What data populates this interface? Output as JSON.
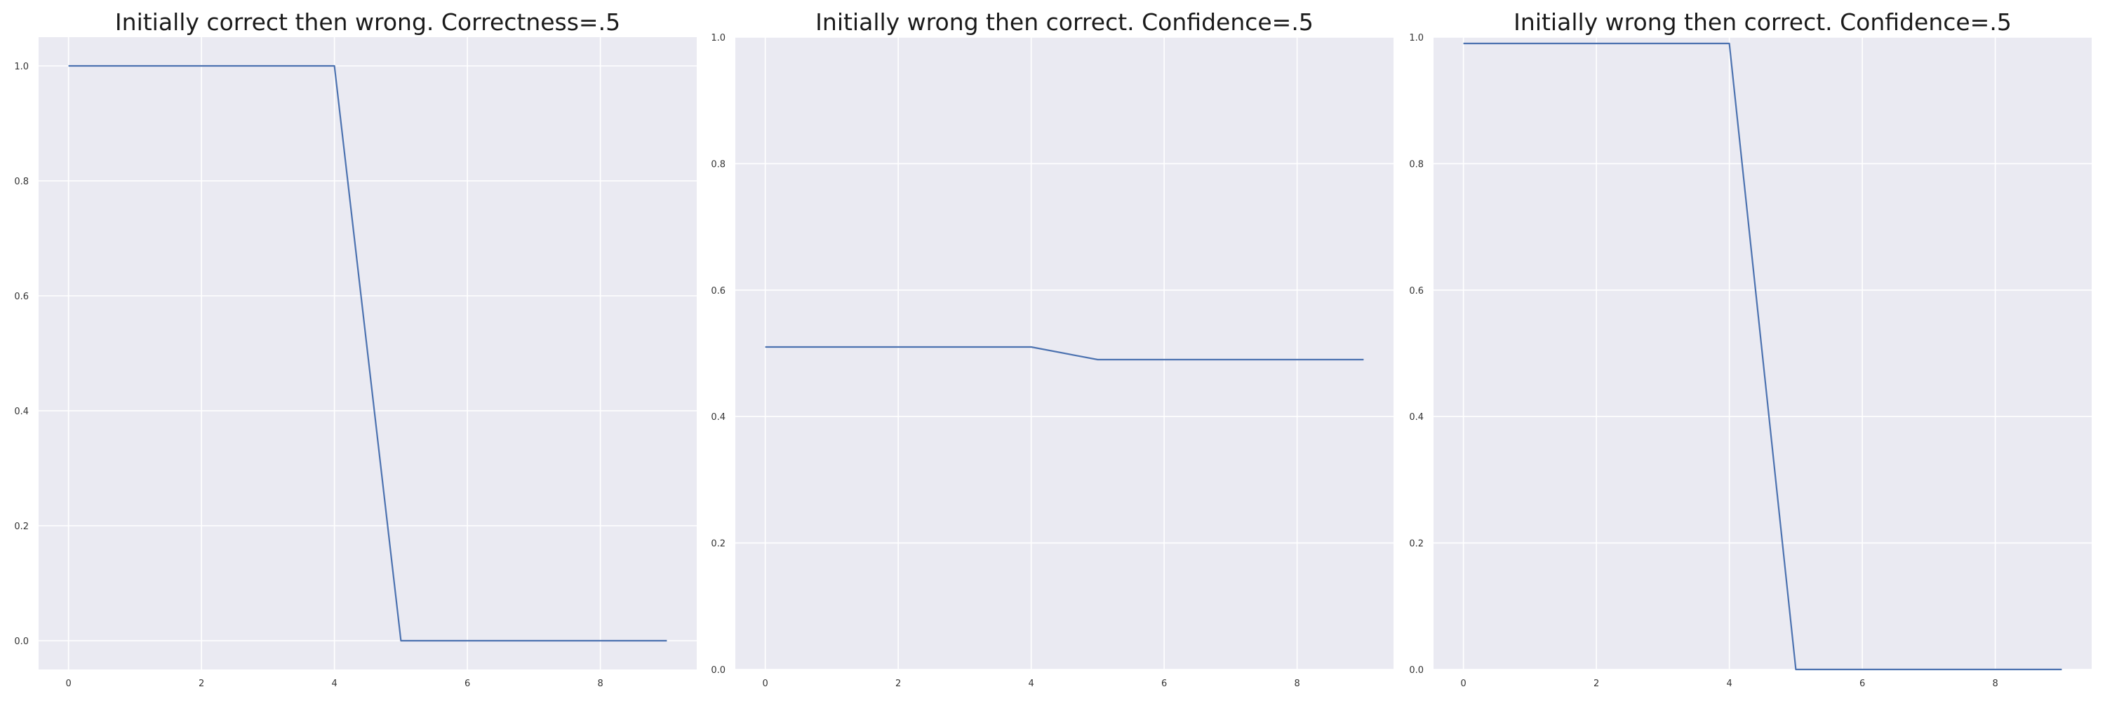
{
  "chart_data": [
    {
      "type": "line",
      "title": "Initially correct then wrong. Correctness=.5",
      "xlabel": "",
      "ylabel": "",
      "x": [
        0,
        1,
        2,
        3,
        4,
        5,
        6,
        7,
        8,
        9
      ],
      "series": [
        {
          "values": [
            1.0,
            1.0,
            1.0,
            1.0,
            1.0,
            0.0,
            0.0,
            0.0,
            0.0,
            0.0
          ]
        }
      ],
      "xlim": [
        -0.45,
        9.45
      ],
      "ylim": [
        -0.05,
        1.05
      ],
      "xticks": [
        0,
        2,
        4,
        6,
        8
      ],
      "yticks": [
        0.0,
        0.2,
        0.4,
        0.6,
        0.8,
        1.0
      ],
      "xtick_labels": [
        "0",
        "2",
        "4",
        "6",
        "8"
      ],
      "ytick_labels": [
        "0.0",
        "0.2",
        "0.4",
        "0.6",
        "0.8",
        "1.0"
      ],
      "grid": true
    },
    {
      "type": "line",
      "title": "Initially wrong then correct. Confidence=.5",
      "xlabel": "",
      "ylabel": "",
      "x": [
        0,
        1,
        2,
        3,
        4,
        5,
        6,
        7,
        8,
        9
      ],
      "series": [
        {
          "values": [
            0.51,
            0.51,
            0.51,
            0.51,
            0.51,
            0.49,
            0.49,
            0.49,
            0.49,
            0.49
          ]
        }
      ],
      "xlim": [
        -0.45,
        9.45
      ],
      "ylim": [
        0.0,
        1.0
      ],
      "xticks": [
        0,
        2,
        4,
        6,
        8
      ],
      "yticks": [
        0.0,
        0.2,
        0.4,
        0.6,
        0.8,
        1.0
      ],
      "xtick_labels": [
        "0",
        "2",
        "4",
        "6",
        "8"
      ],
      "ytick_labels": [
        "0.0",
        "0.2",
        "0.4",
        "0.6",
        "0.8",
        "1.0"
      ],
      "grid": true
    },
    {
      "type": "line",
      "title": "Initially wrong then correct. Confidence=.5",
      "xlabel": "",
      "ylabel": "",
      "x": [
        0,
        1,
        2,
        3,
        4,
        5,
        6,
        7,
        8,
        9
      ],
      "series": [
        {
          "values": [
            0.99,
            0.99,
            0.99,
            0.99,
            0.99,
            0.0,
            0.0,
            0.0,
            0.0,
            0.0
          ]
        }
      ],
      "xlim": [
        -0.45,
        9.45
      ],
      "ylim": [
        0.0,
        1.0
      ],
      "xticks": [
        0,
        2,
        4,
        6,
        8
      ],
      "yticks": [
        0.0,
        0.2,
        0.4,
        0.6,
        0.8,
        1.0
      ],
      "xtick_labels": [
        "0",
        "2",
        "4",
        "6",
        "8"
      ],
      "ytick_labels": [
        "0.0",
        "0.2",
        "0.4",
        "0.6",
        "0.8",
        "1.0"
      ],
      "grid": true
    }
  ],
  "colors": {
    "plot_background": "#eaeaf2",
    "grid": "#ffffff",
    "line": "#4c72b0",
    "text": "#1a1a1a"
  }
}
